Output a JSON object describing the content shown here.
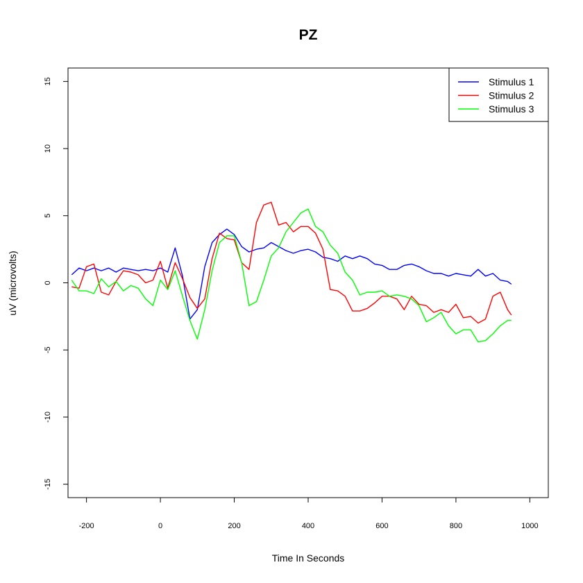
{
  "chart_data": {
    "type": "line",
    "title": "PZ",
    "xlabel": "Time In Seconds",
    "ylabel": "uV (microvolts)",
    "xlim": [
      -250,
      1050
    ],
    "ylim": [
      -16,
      16
    ],
    "x_ticks": [
      -200,
      0,
      200,
      400,
      600,
      800,
      1000
    ],
    "y_ticks": [
      -15,
      -10,
      -5,
      0,
      5,
      10,
      15
    ],
    "grid": false,
    "legend_position": "top-right",
    "x": [
      -240,
      -220,
      -200,
      -180,
      -160,
      -140,
      -120,
      -100,
      -80,
      -60,
      -40,
      -20,
      0,
      20,
      40,
      60,
      80,
      100,
      120,
      140,
      160,
      180,
      200,
      220,
      240,
      260,
      280,
      300,
      320,
      340,
      360,
      380,
      400,
      420,
      440,
      460,
      480,
      500,
      520,
      540,
      560,
      580,
      600,
      620,
      640,
      660,
      680,
      700,
      720,
      740,
      760,
      780,
      800,
      820,
      840,
      860,
      880,
      900,
      920,
      940,
      950
    ],
    "series": [
      {
        "name": "Stimulus 1",
        "color": "#0000FF",
        "values": [
          0.6,
          1.1,
          0.9,
          1.1,
          0.9,
          1.1,
          0.8,
          1.1,
          1.0,
          0.9,
          1.0,
          0.9,
          1.1,
          0.8,
          2.6,
          0.5,
          -2.7,
          -2.0,
          1.2,
          3.0,
          3.6,
          4.0,
          3.6,
          2.7,
          2.3,
          2.5,
          2.6,
          3.0,
          2.7,
          2.4,
          2.2,
          2.4,
          2.5,
          2.3,
          1.9,
          1.8,
          1.6,
          2.0,
          1.8,
          2.0,
          1.8,
          1.4,
          1.3,
          1.0,
          1.0,
          1.3,
          1.4,
          1.2,
          0.9,
          0.7,
          0.7,
          0.5,
          0.7,
          0.6,
          0.5,
          1.0,
          0.5,
          0.7,
          0.2,
          0.1,
          -0.1
        ]
      },
      {
        "name": "Stimulus 2",
        "color": "#FF0000",
        "values": [
          -0.3,
          -0.4,
          1.2,
          1.4,
          -0.7,
          -0.9,
          0.1,
          0.9,
          0.8,
          0.6,
          0.0,
          0.2,
          1.6,
          -0.4,
          1.5,
          0.3,
          -1.1,
          -1.9,
          -1.2,
          1.8,
          3.7,
          3.3,
          3.2,
          1.5,
          1.0,
          4.5,
          5.8,
          6.0,
          4.3,
          4.5,
          3.8,
          4.2,
          4.2,
          3.7,
          2.5,
          -0.5,
          -0.6,
          -1.0,
          -2.1,
          -2.1,
          -1.9,
          -1.5,
          -1.0,
          -1.0,
          -1.2,
          -2.0,
          -1.0,
          -1.6,
          -1.7,
          -2.2,
          -2.0,
          -2.2,
          -1.6,
          -2.6,
          -2.5,
          -3.0,
          -2.7,
          -1.0,
          -0.7,
          -2.0,
          -2.4
        ]
      },
      {
        "name": "Stimulus 3",
        "color": "#00FF00",
        "values": [
          0.2,
          -0.6,
          -0.6,
          -0.8,
          0.3,
          -0.3,
          0.1,
          -0.6,
          -0.2,
          -0.4,
          -1.2,
          -1.7,
          0.2,
          -0.5,
          0.9,
          -1.0,
          -2.8,
          -4.2,
          -2.0,
          0.9,
          3.0,
          3.5,
          3.5,
          1.5,
          -1.7,
          -1.4,
          0.2,
          2.0,
          2.6,
          3.8,
          4.5,
          5.2,
          5.5,
          4.2,
          3.8,
          2.8,
          2.2,
          0.8,
          0.2,
          -0.9,
          -0.7,
          -0.7,
          -0.6,
          -1.0,
          -0.9,
          -1.0,
          -1.2,
          -1.7,
          -2.9,
          -2.6,
          -2.2,
          -3.2,
          -3.8,
          -3.5,
          -3.5,
          -4.4,
          -4.3,
          -3.8,
          -3.2,
          -2.8,
          -2.8
        ]
      }
    ]
  }
}
